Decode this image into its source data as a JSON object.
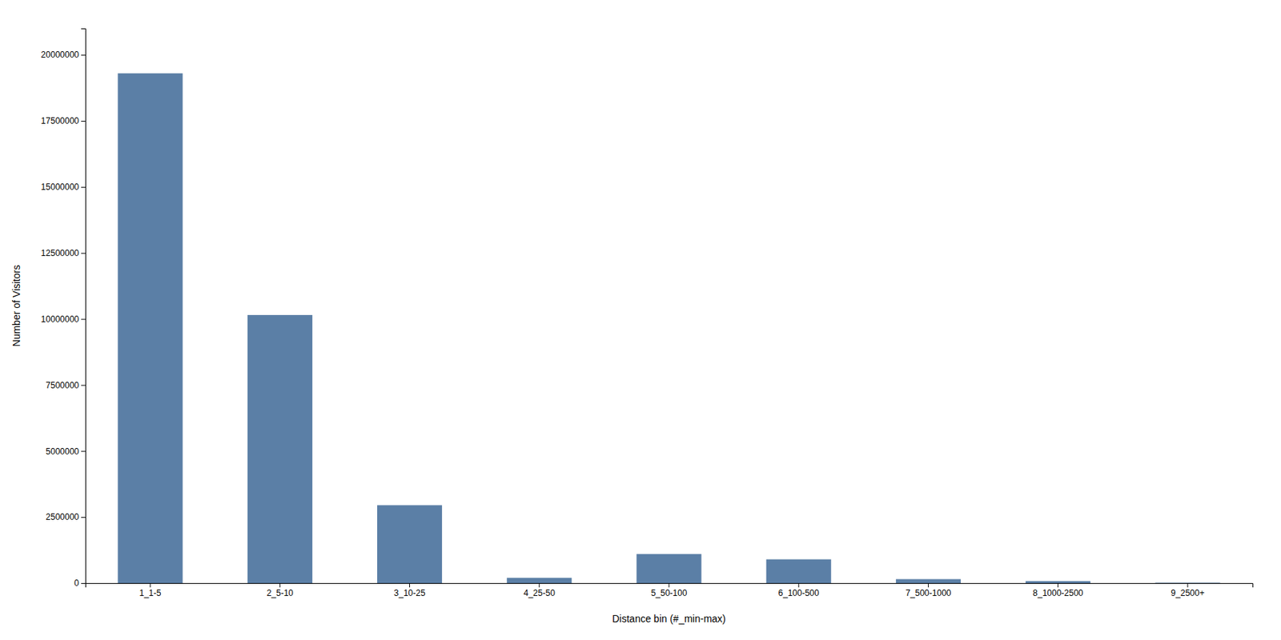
{
  "chart_data": {
    "type": "bar",
    "categories": [
      "1_1-5",
      "2_5-10",
      "3_10-25",
      "4_25-50",
      "5_50-100",
      "6_100-500",
      "7_500-1000",
      "8_1000-2500",
      "9_2500+"
    ],
    "values": [
      19300000,
      10150000,
      2950000,
      200000,
      1100000,
      900000,
      150000,
      75000,
      15000
    ],
    "color": "#5b7fa6",
    "xlabel": "Distance bin (#_min-max)",
    "ylabel": "Number of Visitors",
    "ylim": [
      0,
      21000000
    ],
    "yticks": [
      0,
      2500000,
      5000000,
      7500000,
      10000000,
      12500000,
      15000000,
      17500000,
      20000000
    ],
    "grid": false
  }
}
